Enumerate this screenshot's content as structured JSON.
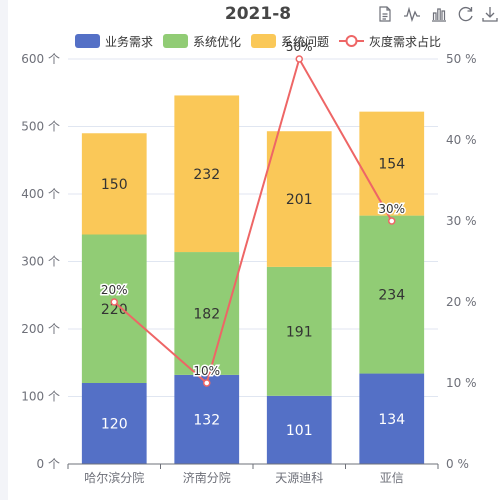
{
  "toolbox": {
    "icons": [
      "data-view-icon",
      "line-chart-icon",
      "bar-chart-icon",
      "restore-icon",
      "download-icon"
    ]
  },
  "colors": {
    "business": "#5470c6",
    "optimize": "#91cc75",
    "issue": "#fac858",
    "ratio": "#ee6666",
    "axis_text": "#6e7079",
    "grid": "#e0e6f1",
    "title": "#464646"
  },
  "chart_data": {
    "type": "bar",
    "stacked": true,
    "title": "2021-8",
    "categories": [
      "哈尔滨分院",
      "济南分院",
      "天源迪科",
      "亚信"
    ],
    "series": [
      {
        "name": "业务需求",
        "type": "bar",
        "values": [
          120,
          132,
          101,
          134
        ]
      },
      {
        "name": "系统优化",
        "type": "bar",
        "values": [
          220,
          182,
          191,
          234
        ]
      },
      {
        "name": "系统问题",
        "type": "bar",
        "values": [
          150,
          232,
          201,
          154
        ]
      },
      {
        "name": "灰度需求占比",
        "type": "line",
        "axis": "right",
        "values": [
          20,
          10,
          50,
          30
        ],
        "labels": [
          "20%",
          "10%",
          "50%",
          "30%"
        ]
      }
    ],
    "y_left": {
      "min": 0,
      "max": 600,
      "ticks": [
        0,
        100,
        200,
        300,
        400,
        500,
        600
      ],
      "tick_labels": [
        "0 个",
        "100 个",
        "200 个",
        "300 个",
        "400 个",
        "500 个",
        "600 个"
      ]
    },
    "y_right": {
      "min": 0,
      "max": 50,
      "ticks": [
        0,
        10,
        20,
        30,
        40,
        50
      ],
      "tick_labels": [
        "0 %",
        "10 %",
        "20 %",
        "30 %",
        "40 %",
        "50 %"
      ]
    },
    "grid": true,
    "legend_position": "top"
  }
}
